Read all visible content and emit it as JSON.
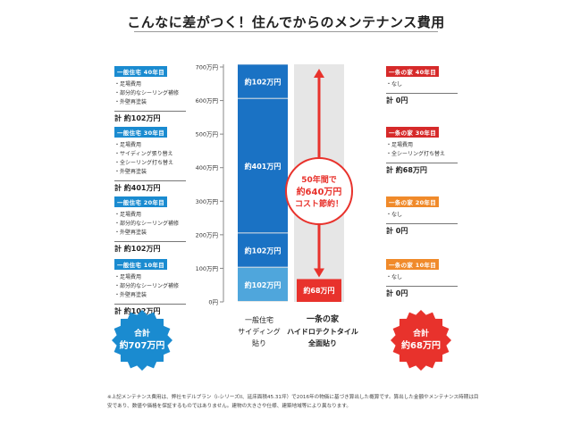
{
  "title": "こんなに差がつく！住んでからのメンテナンス費用",
  "left_cards": [
    {
      "header": "一般住宅 40年目",
      "items": [
        "・足場費用",
        "・部分的なシーリング補修",
        "・外壁再塗装"
      ],
      "total": "計 約102万円"
    },
    {
      "header": "一般住宅 30年目",
      "items": [
        "・足場費用",
        "・サイディング張り替え",
        "・全シーリング打ち替え",
        "・外壁再塗装"
      ],
      "total": "計 約401万円"
    },
    {
      "header": "一般住宅 20年目",
      "items": [
        "・足場費用",
        "・部分的なシーリング補修",
        "・外壁再塗装"
      ],
      "total": "計 約102万円"
    },
    {
      "header": "一般住宅 10年目",
      "items": [
        "・足場費用",
        "・部分的なシーリング補修",
        "・外壁再塗装"
      ],
      "total": "計 約102万円"
    }
  ],
  "right_cards": [
    {
      "header": "一条の家 40年目",
      "items": [
        "・なし"
      ],
      "total": "計 0円"
    },
    {
      "header": "一条の家 30年目",
      "items": [
        "・足場費用",
        "・全シーリング打ち替え"
      ],
      "total": "計 約68万円"
    },
    {
      "header": "一条の家 20年目",
      "items": [
        "・なし"
      ],
      "total": "計 0円"
    },
    {
      "header": "一条の家 10年目",
      "items": [
        "・なし"
      ],
      "total": "計 0円"
    }
  ],
  "left_badge": {
    "line1": "合計",
    "line2": "約707万円"
  },
  "right_badge": {
    "line1": "合計",
    "line2": "約68万円"
  },
  "savings": {
    "line1": "50年間で",
    "line2": "約640万円",
    "line3": "コスト節約！"
  },
  "x_labels": [
    {
      "line1": "一般住宅",
      "line2": "サイディング",
      "line3": "貼り"
    },
    {
      "line1": "一条の家",
      "line2": "ハイドロテクトタイル",
      "line3": "全面貼り"
    }
  ],
  "note": "※上記メンテナンス費用は、弊社モデルプラン（i-シリーズII、延床面積45.31坪）で2016年の物価に基づき算出した概算です。算出した金額やメンテナンス時期は目安であり、数値や価格を保証するものではありません。建物の大きさや仕様、建築地域等により異なります。",
  "colors": {
    "left_header": "#1a8bd0",
    "right_header_dark": "#d62a2a",
    "right_header_light": "#f08a2a",
    "bar_light": "#4fa6dc",
    "bar_dark": "#1a72c4",
    "bar_red": "#e8322c",
    "column_bg": "#e6e6e6",
    "arrow": "#e8322c"
  },
  "chart_data": {
    "type": "bar",
    "stacked": true,
    "ylim": [
      0,
      700
    ],
    "yticks": [
      "0円",
      "100万円",
      "200万円",
      "300万円",
      "400万円",
      "500万円",
      "600万円",
      "700万円"
    ],
    "categories": [
      "一般住宅 サイディング貼り",
      "一条の家 ハイドロテクトタイル全面貼り"
    ],
    "series": [
      {
        "values": [
          102,
          68
        ],
        "labels": [
          "約102万円",
          "約68万円"
        ]
      },
      {
        "values": [
          102,
          0
        ],
        "labels": [
          "約102万円",
          ""
        ]
      },
      {
        "values": [
          401,
          0
        ],
        "labels": [
          "約401万円",
          ""
        ]
      },
      {
        "values": [
          102,
          0
        ],
        "labels": [
          "約102万円",
          ""
        ]
      }
    ]
  }
}
